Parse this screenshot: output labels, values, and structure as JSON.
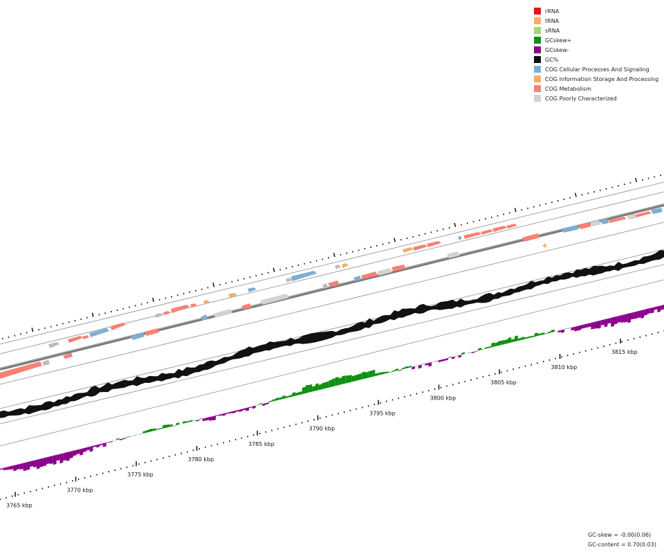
{
  "legend": [
    {
      "label": "rRNA",
      "color": "#d7191c"
    },
    {
      "label": "tRNA",
      "color": "#fdae61"
    },
    {
      "label": "sRNA",
      "color": "#a6d96a"
    },
    {
      "label": "GCskew+",
      "color": "#109010"
    },
    {
      "label": "GCskew-",
      "color": "#8b008b"
    },
    {
      "label": "GC%",
      "color": "#111111"
    },
    {
      "label": "COG Cellular Processes And Signaling",
      "color": "#7bafd4"
    },
    {
      "label": "COG Information Storage And Processing",
      "color": "#f6ad63"
    },
    {
      "label": "COG Metabolism",
      "color": "#fa8072"
    },
    {
      "label": "COG Poorly Characterized",
      "color": "#d3d3d3"
    }
  ],
  "axis": {
    "tick_labels": [
      "3765 kbp",
      "3770 kbp",
      "3775 kbp",
      "3780 kbp",
      "3785 kbp",
      "3790 kbp",
      "3795 kbp",
      "3800 kbp",
      "3805 kbp",
      "3810 kbp",
      "3815 kbp"
    ]
  },
  "stats": {
    "gc_skew": "GC-skew = -0.00(0.06)",
    "gc_content": "GC-content = 0.70(0.03)"
  }
}
